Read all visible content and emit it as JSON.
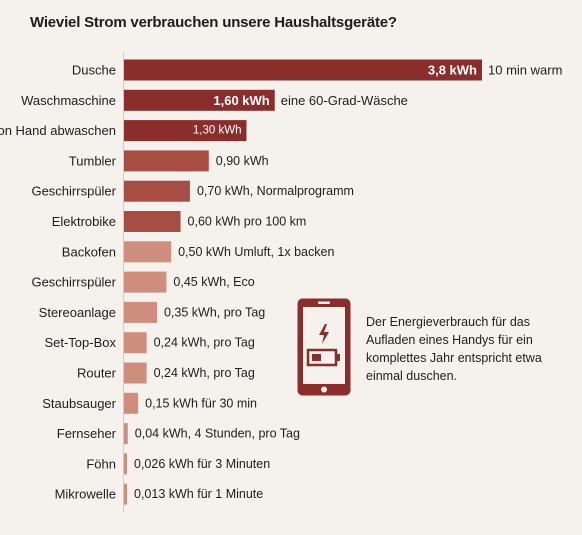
{
  "title": "Wieviel Strom verbrauchen unsere Haushaltsgeräte?",
  "colors": {
    "dark": "#8b2e2b",
    "mid": "#a84d44",
    "light": "#cf8e7d",
    "background": "#f5f1ec"
  },
  "info": {
    "icon": "phone-battery-charging-icon",
    "text": "Der Energieverbrauch für das Aufladen eines Handys für ein komplettes Jahr entspricht etwa einmal duschen."
  },
  "chart_data": {
    "type": "bar",
    "orientation": "horizontal",
    "title": "Wieviel Strom verbrauchen unsere Haushaltsgeräte?",
    "unit": "kWh",
    "categories": [
      "Dusche",
      "Waschmaschine",
      "Von Hand abwaschen",
      "Tumbler",
      "Geschirrspüler",
      "Elektrobike",
      "Backofen",
      "Geschirrspüler",
      "Stereoanlage",
      "Set-Top-Box",
      "Router",
      "Staubsauger",
      "Fernseher",
      "Föhn",
      "Mikrowelle"
    ],
    "values": [
      3.8,
      1.6,
      1.3,
      0.9,
      0.7,
      0.6,
      0.5,
      0.45,
      0.35,
      0.24,
      0.24,
      0.15,
      0.04,
      0.026,
      0.013
    ],
    "data_labels": [
      "3,8 kWh",
      "1,60 kWh",
      "1,30 kWh",
      "0,90 kWh",
      "0,70 kWh, Normalprogramm",
      "0,60 kWh pro 100 km",
      "0,50 kWh Umluft, 1x backen",
      "0,45 kWh, Eco",
      "0,35 kWh, pro Tag",
      "0,24 kWh, pro Tag",
      "0,24 kWh, pro Tag",
      "0,15 kWh für 30 min",
      "0,04 kWh, 4 Stunden, pro Tag",
      "0,026 kWh für 3 Minuten",
      "0,013 kWh für 1 Minute"
    ],
    "annotations": [
      "10 min warm",
      "eine 60-Grad-Wäsche",
      "",
      "",
      "",
      "",
      "",
      "",
      "",
      "",
      "",
      "",
      "",
      "",
      ""
    ],
    "xlim": [
      0,
      3.8
    ],
    "grid": false,
    "legend": "none"
  }
}
